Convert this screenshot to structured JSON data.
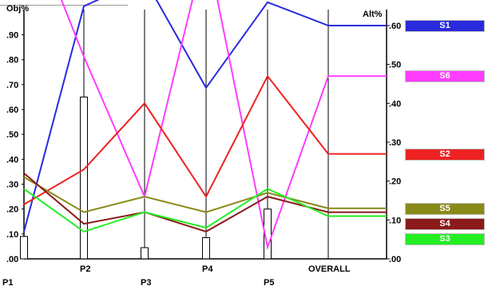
{
  "chart_data": {
    "type": "line",
    "title": "",
    "left_axis_label": "Obj%",
    "right_axis_label": "Alt%",
    "left_axis_ticks": [
      ".00",
      ".10",
      ".20",
      ".30",
      ".40",
      ".50",
      ".60",
      ".70",
      ".80",
      ".90"
    ],
    "left_ylim": [
      0,
      0.95
    ],
    "right_axis_ticks": [
      ".00",
      ".10",
      ".20",
      ".30",
      ".40",
      ".50",
      ".60"
    ],
    "right_ylim": [
      0,
      0.6
    ],
    "categories": [
      "P1",
      "P2",
      "P3",
      "P4",
      "P5",
      "OVERALL"
    ],
    "objective_bars": [
      0.09,
      0.65,
      0.045,
      0.085,
      0.2
    ],
    "series": [
      {
        "name": "S1",
        "color": "#2a2add",
        "values": [
          0.07,
          0.65,
          0.72,
          0.44,
          0.66,
          0.6
        ]
      },
      {
        "name": "S6",
        "color": "#ff3cff",
        "values": [
          0.91,
          0.52,
          0.16,
          0.81,
          0.03,
          0.47
        ]
      },
      {
        "name": "S2",
        "color": "#ee2222",
        "values": [
          0.14,
          0.23,
          0.4,
          0.16,
          0.47,
          0.27
        ]
      },
      {
        "name": "S5",
        "color": "#8a8a1a",
        "values": [
          0.21,
          0.12,
          0.16,
          0.12,
          0.17,
          0.13
        ]
      },
      {
        "name": "S4",
        "color": "#8b1a1a",
        "values": [
          0.22,
          0.09,
          0.12,
          0.07,
          0.16,
          0.12
        ]
      },
      {
        "name": "S3",
        "color": "#22ee22",
        "values": [
          0.18,
          0.07,
          0.12,
          0.08,
          0.18,
          0.11
        ]
      }
    ],
    "grid": false,
    "legend_placement": "right"
  }
}
